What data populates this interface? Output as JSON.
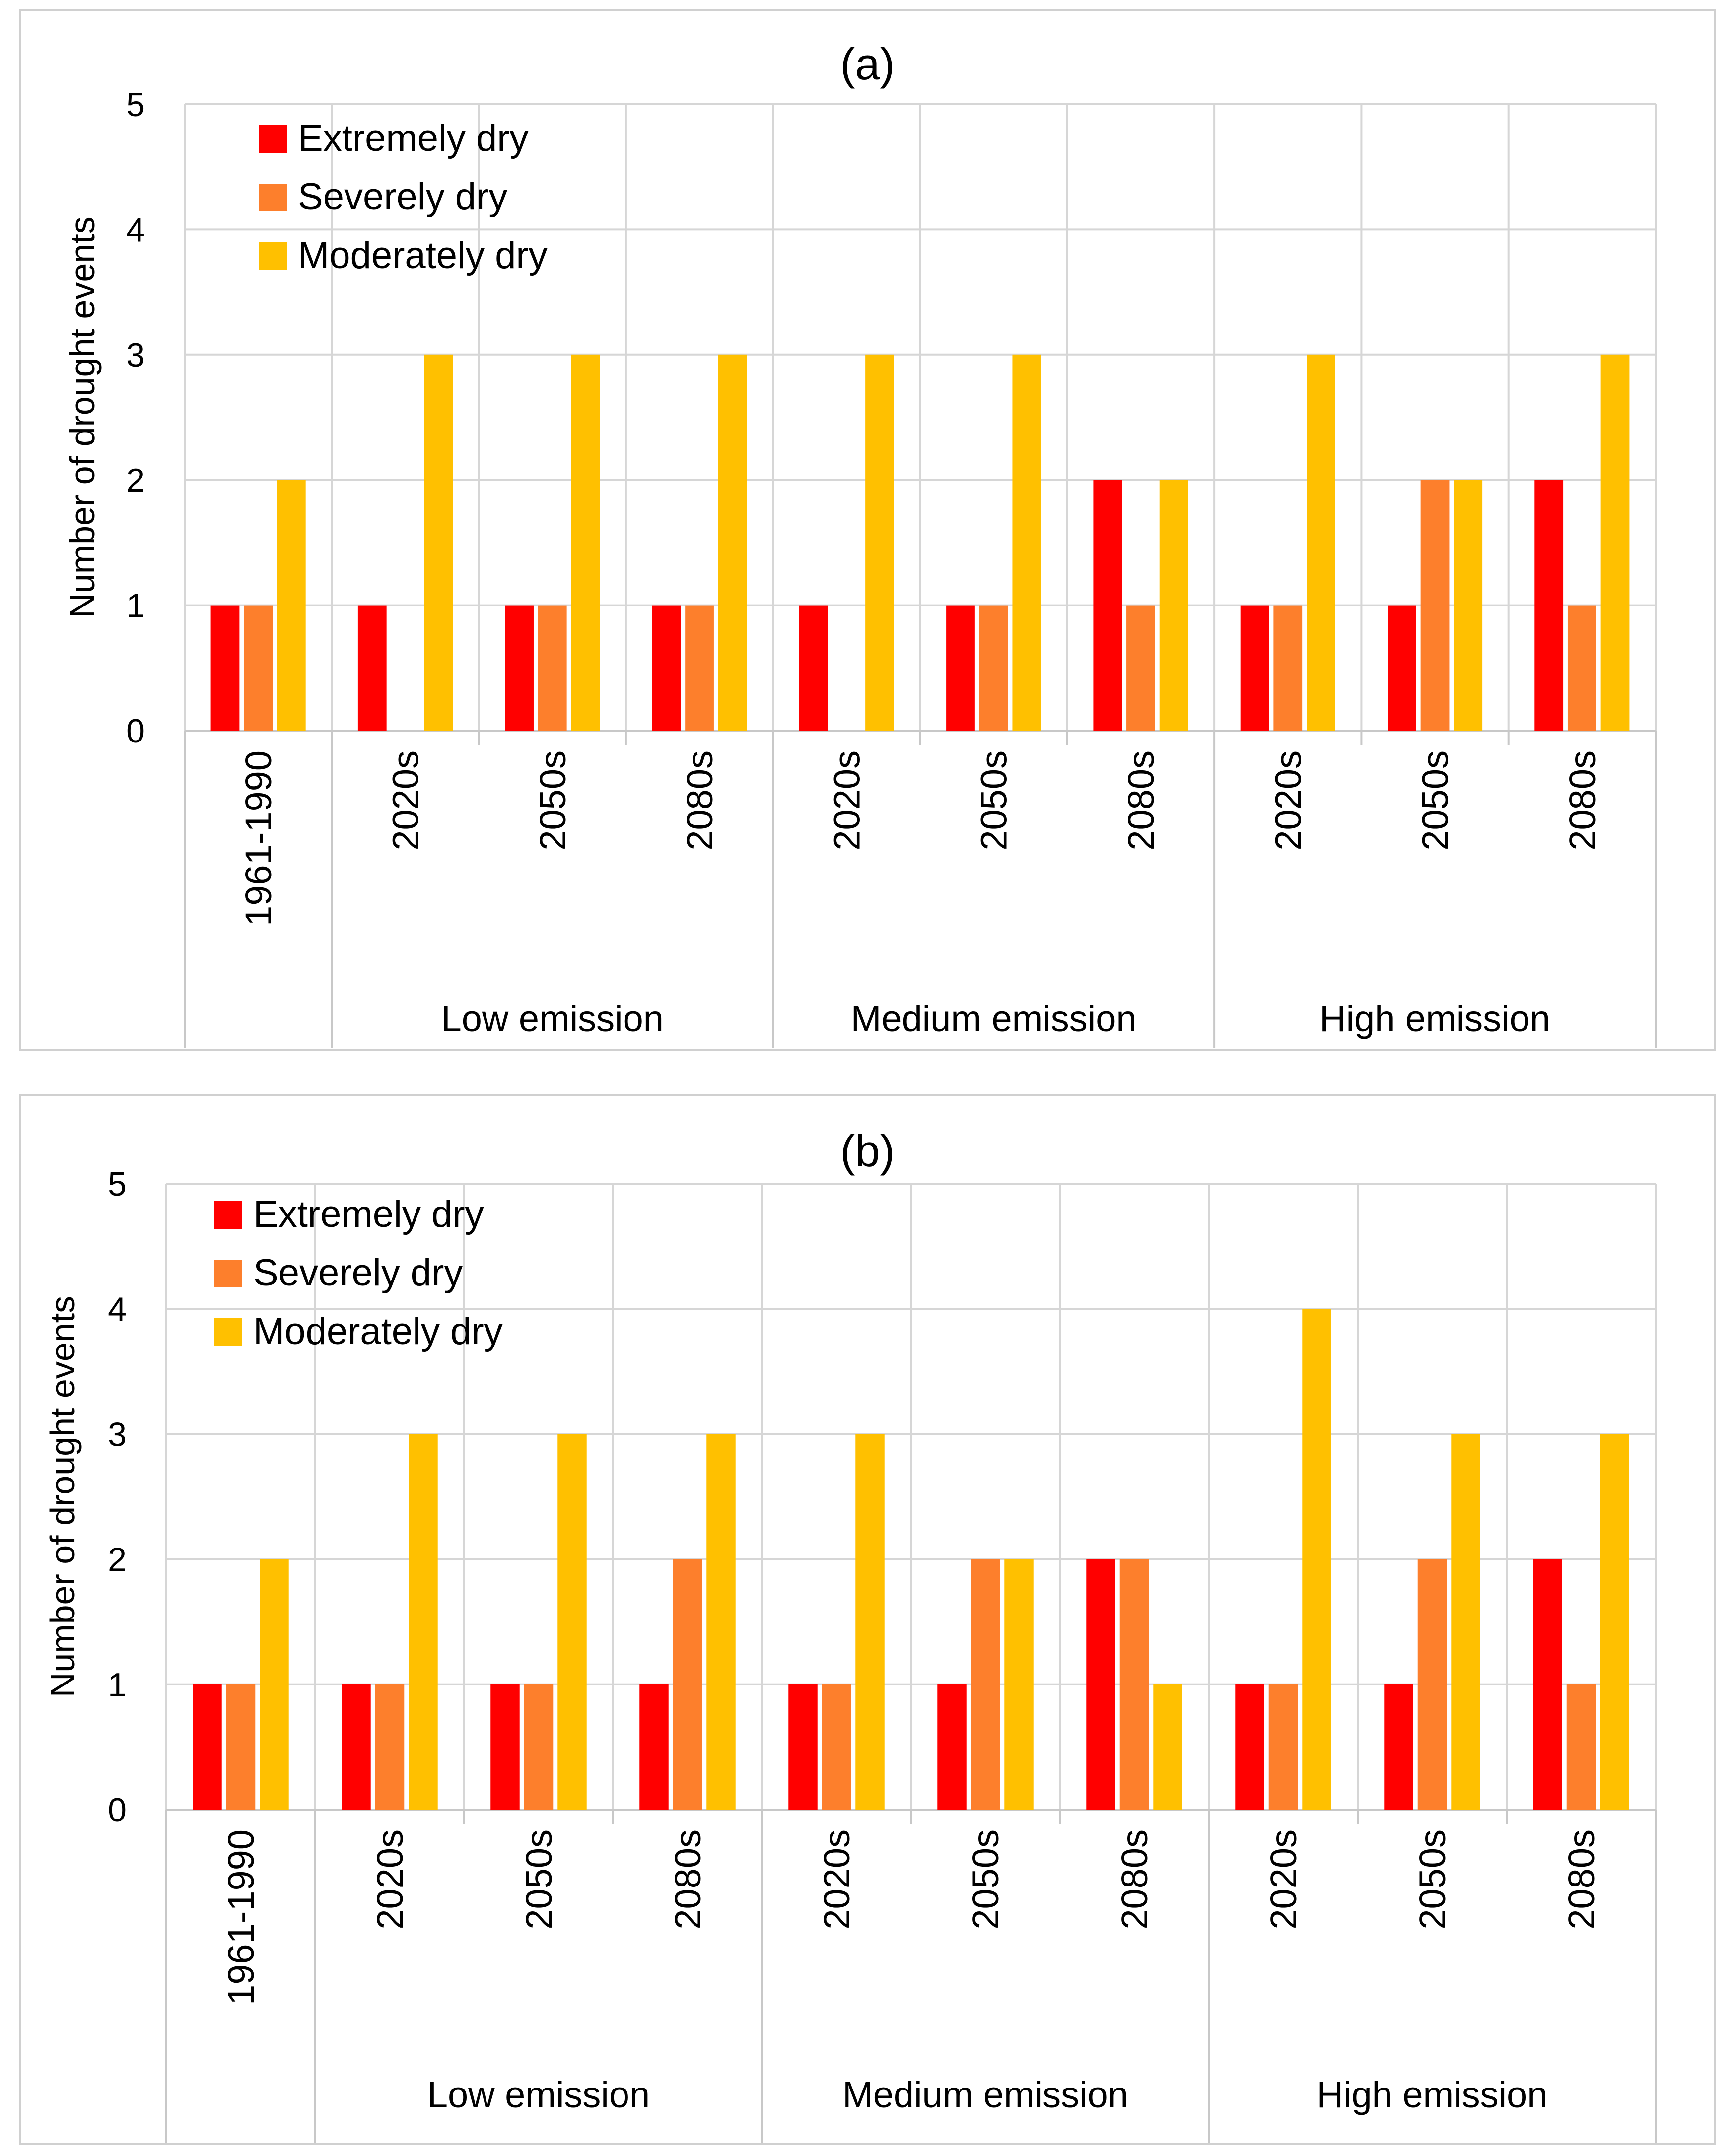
{
  "chart_data": [
    {
      "type": "bar",
      "title": "(a)",
      "ylabel": "Number of drought events",
      "xlabel": "",
      "ylim": [
        0,
        5
      ],
      "yticks": [
        0,
        1,
        2,
        3,
        4,
        5
      ],
      "grid": true,
      "legend_position": "top-left",
      "categories": [
        "1961-1990",
        "2020s",
        "2050s",
        "2080s",
        "2020s",
        "2050s",
        "2080s",
        "2020s",
        "2050s",
        "2080s"
      ],
      "groups": [
        {
          "label": "",
          "span": 1
        },
        {
          "label": "Low emission",
          "span": 3
        },
        {
          "label": "Medium emission",
          "span": 3
        },
        {
          "label": "High emission",
          "span": 3
        }
      ],
      "series": [
        {
          "name": "Extremely dry",
          "color": "#ff0000",
          "values": [
            1,
            1,
            1,
            1,
            1,
            1,
            2,
            1,
            1,
            2
          ]
        },
        {
          "name": "Severely dry",
          "color": "#fd7f2c",
          "values": [
            1,
            0,
            1,
            1,
            0,
            1,
            1,
            1,
            2,
            1
          ]
        },
        {
          "name": "Moderately dry",
          "color": "#ffc000",
          "values": [
            2,
            3,
            3,
            3,
            3,
            3,
            2,
            3,
            2,
            3
          ]
        }
      ]
    },
    {
      "type": "bar",
      "title": "(b)",
      "ylabel": "Number of drought events",
      "xlabel": "",
      "ylim": [
        0,
        5
      ],
      "yticks": [
        0,
        1,
        2,
        3,
        4,
        5
      ],
      "grid": true,
      "legend_position": "top-left",
      "categories": [
        "1961-1990",
        "2020s",
        "2050s",
        "2080s",
        "2020s",
        "2050s",
        "2080s",
        "2020s",
        "2050s",
        "2080s"
      ],
      "groups": [
        {
          "label": "",
          "span": 1
        },
        {
          "label": "Low emission",
          "span": 3
        },
        {
          "label": "Medium emission",
          "span": 3
        },
        {
          "label": "High emission",
          "span": 3
        }
      ],
      "series": [
        {
          "name": "Extremely dry",
          "color": "#ff0000",
          "values": [
            1,
            1,
            1,
            1,
            1,
            1,
            2,
            1,
            1,
            2
          ]
        },
        {
          "name": "Severely dry",
          "color": "#fd7f2c",
          "values": [
            1,
            1,
            1,
            2,
            1,
            2,
            2,
            1,
            2,
            1
          ]
        },
        {
          "name": "Moderately dry",
          "color": "#ffc000",
          "values": [
            2,
            3,
            3,
            3,
            3,
            2,
            1,
            4,
            3,
            3
          ]
        }
      ]
    }
  ]
}
